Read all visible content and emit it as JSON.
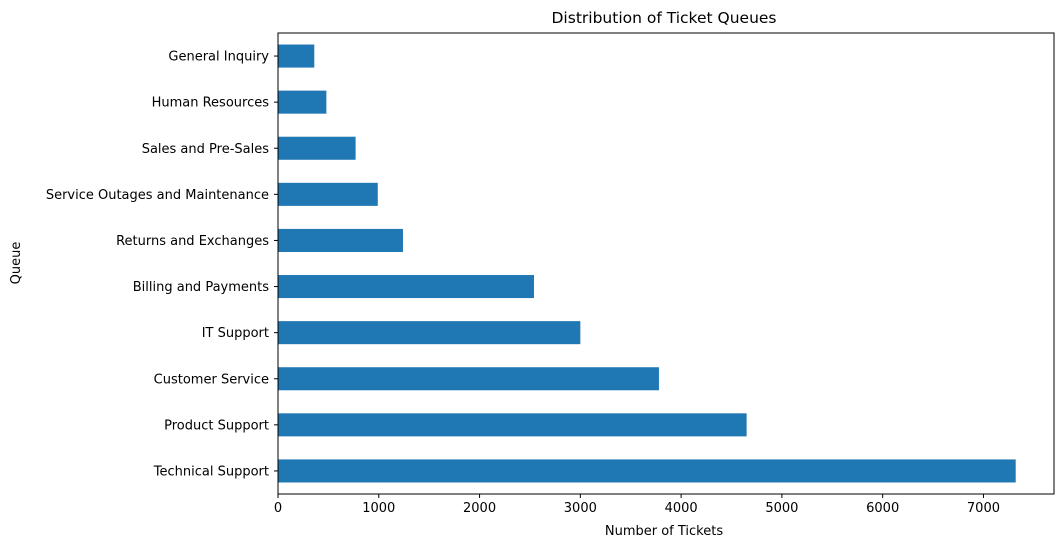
{
  "chart_data": {
    "type": "bar",
    "orientation": "horizontal",
    "title": "Distribution of Ticket Queues",
    "xlabel": "Number of Tickets",
    "ylabel": "Queue",
    "categories": [
      "Technical Support",
      "Product Support",
      "Customer Service",
      "IT Support",
      "Billing and Payments",
      "Returns and Exchanges",
      "Service Outages and Maintenance",
      "Sales and Pre-Sales",
      "Human Resources",
      "General Inquiry"
    ],
    "values": [
      7320,
      4650,
      3780,
      3000,
      2540,
      1240,
      990,
      770,
      480,
      360
    ],
    "xlim": [
      0,
      7700
    ],
    "xticks": [
      0,
      1000,
      2000,
      3000,
      4000,
      5000,
      6000,
      7000
    ],
    "grid": false,
    "bar_color": "#1f77b4"
  }
}
